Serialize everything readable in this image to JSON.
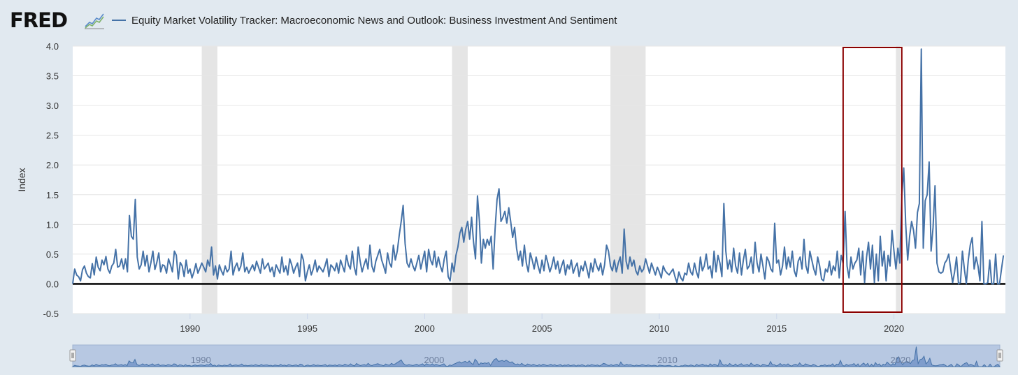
{
  "header": {
    "logo": "FRED",
    "logo_mark_icon": "fred-trend-graph-icon"
  },
  "colors": {
    "series": "#4572a7",
    "recession_band": "#e5e5e5",
    "zero_line": "#000000",
    "highlight_box": "#8b0000",
    "navigator_fill": "#b7c8e2",
    "navigator_line": "#4572a7",
    "background": "#e1e9f0"
  },
  "chart_data": {
    "type": "line",
    "series": [
      {
        "name": "Equity Market Volatility Tracker: Macroeconomic News and Outlook: Business Investment And Sentiment",
        "x": [
          "1985-01",
          "1985-02",
          "1985-03",
          "1985-04",
          "1985-05",
          "1985-06",
          "1985-07",
          "1985-08",
          "1985-09",
          "1985-10",
          "1985-11",
          "1985-12",
          "1986-01",
          "1986-02",
          "1986-03",
          "1986-04",
          "1986-05",
          "1986-06",
          "1986-07",
          "1986-08",
          "1986-09",
          "1986-10",
          "1986-11",
          "1986-12",
          "1987-01",
          "1987-02",
          "1987-03",
          "1987-04",
          "1987-05",
          "1987-06",
          "1987-07",
          "1987-08",
          "1987-09",
          "1987-10",
          "1987-11",
          "1987-12",
          "1988-01",
          "1988-02",
          "1988-03",
          "1988-04",
          "1988-05",
          "1988-06",
          "1988-07",
          "1988-08",
          "1988-09",
          "1988-10",
          "1988-11",
          "1988-12",
          "1989-01",
          "1989-02",
          "1989-03",
          "1989-04",
          "1989-05",
          "1989-06",
          "1989-07",
          "1989-08",
          "1989-09",
          "1989-10",
          "1989-11",
          "1989-12",
          "1990-01",
          "1990-02",
          "1990-03",
          "1990-04",
          "1990-05",
          "1990-06",
          "1990-07",
          "1990-08",
          "1990-09",
          "1990-10",
          "1990-11",
          "1990-12",
          "1991-01",
          "1991-02",
          "1991-03",
          "1991-04",
          "1991-05",
          "1991-06",
          "1991-07",
          "1991-08",
          "1991-09",
          "1991-10",
          "1991-11",
          "1991-12",
          "1992-01",
          "1992-02",
          "1992-03",
          "1992-04",
          "1992-05",
          "1992-06",
          "1992-07",
          "1992-08",
          "1992-09",
          "1992-10",
          "1992-11",
          "1992-12",
          "1993-01",
          "1993-02",
          "1993-03",
          "1993-04",
          "1993-05",
          "1993-06",
          "1993-07",
          "1993-08",
          "1993-09",
          "1993-10",
          "1993-11",
          "1993-12",
          "1994-01",
          "1994-02",
          "1994-03",
          "1994-04",
          "1994-05",
          "1994-06",
          "1994-07",
          "1994-08",
          "1994-09",
          "1994-10",
          "1994-11",
          "1994-12",
          "1995-01",
          "1995-02",
          "1995-03",
          "1995-04",
          "1995-05",
          "1995-06",
          "1995-07",
          "1995-08",
          "1995-09",
          "1995-10",
          "1995-11",
          "1995-12",
          "1996-01",
          "1996-02",
          "1996-03",
          "1996-04",
          "1996-05",
          "1996-06",
          "1996-07",
          "1996-08",
          "1996-09",
          "1996-10",
          "1996-11",
          "1996-12",
          "1997-01",
          "1997-02",
          "1997-03",
          "1997-04",
          "1997-05",
          "1997-06",
          "1997-07",
          "1997-08",
          "1997-09",
          "1997-10",
          "1997-11",
          "1997-12",
          "1998-01",
          "1998-02",
          "1998-03",
          "1998-04",
          "1998-05",
          "1998-06",
          "1998-07",
          "1998-08",
          "1998-09",
          "1998-10",
          "1998-11",
          "1998-12",
          "1999-01",
          "1999-02",
          "1999-03",
          "1999-04",
          "1999-05",
          "1999-06",
          "1999-07",
          "1999-08",
          "1999-09",
          "1999-10",
          "1999-11",
          "1999-12",
          "2000-01",
          "2000-02",
          "2000-03",
          "2000-04",
          "2000-05",
          "2000-06",
          "2000-07",
          "2000-08",
          "2000-09",
          "2000-10",
          "2000-11",
          "2000-12",
          "2001-01",
          "2001-02",
          "2001-03",
          "2001-04",
          "2001-05",
          "2001-06",
          "2001-07",
          "2001-08",
          "2001-09",
          "2001-10",
          "2001-11",
          "2001-12",
          "2002-01",
          "2002-02",
          "2002-03",
          "2002-04",
          "2002-05",
          "2002-06",
          "2002-07",
          "2002-08",
          "2002-09",
          "2002-10",
          "2002-11",
          "2002-12",
          "2003-01",
          "2003-02",
          "2003-03",
          "2003-04",
          "2003-05",
          "2003-06",
          "2003-07",
          "2003-08",
          "2003-09",
          "2003-10",
          "2003-11",
          "2003-12",
          "2004-01",
          "2004-02",
          "2004-03",
          "2004-04",
          "2004-05",
          "2004-06",
          "2004-07",
          "2004-08",
          "2004-09",
          "2004-10",
          "2004-11",
          "2004-12",
          "2005-01",
          "2005-02",
          "2005-03",
          "2005-04",
          "2005-05",
          "2005-06",
          "2005-07",
          "2005-08",
          "2005-09",
          "2005-10",
          "2005-11",
          "2005-12",
          "2006-01",
          "2006-02",
          "2006-03",
          "2006-04",
          "2006-05",
          "2006-06",
          "2006-07",
          "2006-08",
          "2006-09",
          "2006-10",
          "2006-11",
          "2006-12",
          "2007-01",
          "2007-02",
          "2007-03",
          "2007-04",
          "2007-05",
          "2007-06",
          "2007-07",
          "2007-08",
          "2007-09",
          "2007-10",
          "2007-11",
          "2007-12",
          "2008-01",
          "2008-02",
          "2008-03",
          "2008-04",
          "2008-05",
          "2008-06",
          "2008-07",
          "2008-08",
          "2008-09",
          "2008-10",
          "2008-11",
          "2008-12",
          "2009-01",
          "2009-02",
          "2009-03",
          "2009-04",
          "2009-05",
          "2009-06",
          "2009-07",
          "2009-08",
          "2009-09",
          "2009-10",
          "2009-11",
          "2009-12",
          "2010-01",
          "2010-02",
          "2010-03",
          "2010-04",
          "2010-05",
          "2010-06",
          "2010-07",
          "2010-08",
          "2010-09",
          "2010-10",
          "2010-11",
          "2010-12",
          "2011-01",
          "2011-02",
          "2011-03",
          "2011-04",
          "2011-05",
          "2011-06",
          "2011-07",
          "2011-08",
          "2011-09",
          "2011-10",
          "2011-11",
          "2011-12",
          "2012-01",
          "2012-02",
          "2012-03",
          "2012-04",
          "2012-05",
          "2012-06",
          "2012-07",
          "2012-08",
          "2012-09",
          "2012-10",
          "2012-11",
          "2012-12",
          "2013-01",
          "2013-02",
          "2013-03",
          "2013-04",
          "2013-05",
          "2013-06",
          "2013-07",
          "2013-08",
          "2013-09",
          "2013-10",
          "2013-11",
          "2013-12",
          "2014-01",
          "2014-02",
          "2014-03",
          "2014-04",
          "2014-05",
          "2014-06",
          "2014-07",
          "2014-08",
          "2014-09",
          "2014-10",
          "2014-11",
          "2014-12",
          "2015-01",
          "2015-02",
          "2015-03",
          "2015-04",
          "2015-05",
          "2015-06",
          "2015-07",
          "2015-08",
          "2015-09",
          "2015-10",
          "2015-11",
          "2015-12",
          "2016-01",
          "2016-02",
          "2016-03",
          "2016-04",
          "2016-05",
          "2016-06",
          "2016-07",
          "2016-08",
          "2016-09",
          "2016-10",
          "2016-11",
          "2016-12",
          "2017-01",
          "2017-02",
          "2017-03",
          "2017-04",
          "2017-05",
          "2017-06",
          "2017-07",
          "2017-08",
          "2017-09",
          "2017-10",
          "2017-11",
          "2017-12",
          "2018-01",
          "2018-02",
          "2018-03",
          "2018-04",
          "2018-05",
          "2018-06",
          "2018-07",
          "2018-08",
          "2018-09",
          "2018-10",
          "2018-11",
          "2018-12",
          "2019-01",
          "2019-02",
          "2019-03",
          "2019-04",
          "2019-05",
          "2019-06",
          "2019-07",
          "2019-08",
          "2019-09",
          "2019-10",
          "2019-11",
          "2019-12",
          "2020-01",
          "2020-02",
          "2020-03",
          "2020-04",
          "2020-05",
          "2020-06",
          "2020-07",
          "2020-08",
          "2020-09",
          "2020-10",
          "2020-11",
          "2020-12",
          "2021-01",
          "2021-02",
          "2021-03",
          "2021-04",
          "2021-05",
          "2021-06",
          "2021-07",
          "2021-08",
          "2021-09",
          "2021-10",
          "2021-11",
          "2021-12",
          "2022-01",
          "2022-02",
          "2022-03",
          "2022-04",
          "2022-05",
          "2022-06",
          "2022-07",
          "2022-08",
          "2022-09",
          "2022-10",
          "2022-11",
          "2022-12",
          "2023-01",
          "2023-02",
          "2023-03",
          "2023-04",
          "2023-05",
          "2023-06",
          "2023-07",
          "2023-08",
          "2023-09",
          "2023-10",
          "2023-11",
          "2023-12",
          "2024-01",
          "2024-02",
          "2024-03",
          "2024-04",
          "2024-05",
          "2024-06",
          "2024-07",
          "2024-08",
          "2024-09"
        ],
        "y": [
          0.0,
          0.25,
          0.15,
          0.12,
          0.05,
          0.24,
          0.3,
          0.18,
          0.12,
          0.1,
          0.34,
          0.15,
          0.45,
          0.28,
          0.22,
          0.4,
          0.32,
          0.46,
          0.25,
          0.18,
          0.3,
          0.35,
          0.58,
          0.28,
          0.3,
          0.42,
          0.25,
          0.42,
          0.2,
          1.15,
          0.8,
          0.75,
          1.42,
          0.45,
          0.25,
          0.32,
          0.55,
          0.3,
          0.48,
          0.2,
          0.36,
          0.55,
          0.24,
          0.36,
          0.52,
          0.2,
          0.32,
          0.3,
          0.18,
          0.42,
          0.32,
          0.2,
          0.55,
          0.48,
          0.08,
          0.36,
          0.3,
          0.12,
          0.4,
          0.18,
          0.25,
          0.1,
          0.2,
          0.34,
          0.18,
          0.26,
          0.35,
          0.28,
          0.2,
          0.4,
          0.3,
          0.62,
          0.15,
          0.3,
          0.08,
          0.32,
          0.22,
          0.15,
          0.3,
          0.2,
          0.25,
          0.55,
          0.15,
          0.28,
          0.35,
          0.22,
          0.3,
          0.52,
          0.2,
          0.28,
          0.18,
          0.25,
          0.32,
          0.22,
          0.38,
          0.28,
          0.18,
          0.42,
          0.25,
          0.3,
          0.35,
          0.2,
          0.28,
          0.12,
          0.32,
          0.25,
          0.18,
          0.45,
          0.2,
          0.3,
          0.15,
          0.42,
          0.32,
          0.18,
          0.28,
          0.35,
          0.12,
          0.5,
          0.4,
          0.05,
          0.2,
          0.32,
          0.15,
          0.25,
          0.4,
          0.2,
          0.3,
          0.25,
          0.2,
          0.3,
          0.42,
          0.12,
          0.32,
          0.28,
          0.22,
          0.35,
          0.18,
          0.4,
          0.3,
          0.2,
          0.48,
          0.32,
          0.25,
          0.55,
          0.28,
          0.15,
          0.62,
          0.38,
          0.2,
          0.32,
          0.42,
          0.25,
          0.65,
          0.3,
          0.2,
          0.38,
          0.48,
          0.58,
          0.4,
          0.3,
          0.18,
          0.52,
          0.35,
          0.28,
          0.65,
          0.4,
          0.55,
          0.82,
          1.05,
          1.32,
          0.68,
          0.35,
          0.28,
          0.42,
          0.3,
          0.22,
          0.35,
          0.48,
          0.25,
          0.4,
          0.55,
          0.2,
          0.58,
          0.4,
          0.32,
          0.55,
          0.28,
          0.45,
          0.3,
          0.2,
          0.42,
          0.55,
          0.12,
          0.05,
          0.35,
          0.2,
          0.48,
          0.62,
          0.85,
          0.95,
          0.7,
          0.92,
          1.05,
          0.75,
          1.12,
          0.7,
          0.42,
          1.48,
          1.05,
          0.35,
          0.75,
          0.6,
          0.75,
          0.65,
          0.8,
          0.25,
          0.92,
          1.42,
          1.6,
          1.05,
          1.12,
          1.22,
          1.02,
          1.28,
          1.05,
          0.78,
          0.95,
          0.6,
          0.4,
          0.55,
          0.3,
          0.65,
          0.35,
          0.2,
          0.52,
          0.4,
          0.25,
          0.45,
          0.3,
          0.18,
          0.4,
          0.22,
          0.48,
          0.35,
          0.2,
          0.3,
          0.45,
          0.25,
          0.38,
          0.18,
          0.3,
          0.4,
          0.15,
          0.32,
          0.25,
          0.4,
          0.18,
          0.28,
          0.35,
          0.12,
          0.3,
          0.22,
          0.38,
          0.25,
          0.1,
          0.35,
          0.2,
          0.42,
          0.3,
          0.22,
          0.35,
          0.15,
          0.32,
          0.65,
          0.55,
          0.3,
          0.22,
          0.4,
          0.2,
          0.35,
          0.45,
          0.18,
          0.92,
          0.38,
          0.25,
          0.45,
          0.3,
          0.4,
          0.22,
          0.15,
          0.3,
          0.2,
          0.25,
          0.42,
          0.3,
          0.18,
          0.35,
          0.25,
          0.15,
          0.28,
          0.2,
          0.1,
          0.3,
          0.22,
          0.18,
          0.15,
          0.2,
          0.25,
          0.12,
          0.02,
          0.2,
          0.1,
          0.05,
          0.18,
          0.15,
          0.35,
          0.2,
          0.15,
          0.35,
          0.2,
          0.1,
          0.45,
          0.22,
          0.3,
          0.5,
          0.25,
          0.3,
          0.1,
          0.55,
          0.2,
          0.48,
          0.35,
          0.12,
          1.35,
          0.55,
          0.25,
          0.4,
          0.2,
          0.6,
          0.3,
          0.18,
          0.52,
          0.15,
          0.4,
          0.58,
          0.25,
          0.3,
          0.45,
          0.18,
          0.7,
          0.35,
          0.2,
          0.5,
          0.3,
          0.08,
          0.45,
          0.38,
          0.25,
          0.2,
          1.02,
          0.35,
          0.4,
          0.15,
          0.3,
          0.62,
          0.25,
          0.45,
          0.28,
          0.55,
          0.22,
          0.12,
          0.38,
          0.45,
          0.25,
          0.75,
          0.3,
          0.18,
          0.55,
          0.4,
          0.25,
          0.15,
          0.45,
          0.3,
          0.08,
          0.05,
          0.25,
          0.2,
          0.38,
          0.15,
          0.3,
          0.22,
          0.55,
          0.1,
          0.48,
          0.35,
          1.22,
          0.3,
          0.1,
          0.45,
          0.25,
          0.35,
          0.4,
          0.6,
          0.15,
          0.55,
          0.02,
          0.45,
          0.7,
          0.25,
          0.65,
          0.02,
          0.5,
          0.05,
          0.8,
          0.3,
          0.55,
          0.05,
          0.48,
          0.3,
          0.9,
          0.55,
          0.25,
          0.6,
          0.35,
          1.5,
          1.95,
          1.0,
          0.4,
          0.8,
          1.05,
          0.9,
          0.6,
          1.2,
          1.35,
          3.95,
          0.6,
          1.4,
          1.5,
          2.05,
          0.55,
          0.95,
          1.65,
          0.35,
          0.2,
          0.18,
          0.2,
          0.35,
          0.4,
          0.5,
          0.25,
          0.02,
          0.2,
          0.45,
          0.0,
          0.02,
          0.55,
          0.25,
          0.0,
          0.4,
          0.65,
          0.78,
          0.25,
          0.45,
          0.3,
          0.05,
          1.05,
          0.0,
          0.0,
          0.02,
          0.4,
          0.0,
          0.0,
          0.5,
          0.0,
          0.0,
          0.25,
          0.48
        ]
      }
    ],
    "recessions": [
      [
        "1990-07",
        "1991-03"
      ],
      [
        "2001-03",
        "2001-11"
      ],
      [
        "2007-12",
        "2009-06"
      ],
      [
        "2020-02",
        "2020-04"
      ]
    ],
    "highlight": {
      "x_start": "2017-11",
      "x_end": "2020-05",
      "y_start": -0.5,
      "y_end": 4.0
    },
    "x_start": "1985-01",
    "x_end": "2024-10",
    "ylabel": "Index",
    "ylim": [
      -0.5,
      4.0
    ],
    "yticks": [
      "4.0",
      "3.5",
      "3.0",
      "2.5",
      "2.0",
      "1.5",
      "1.0",
      "0.5",
      "0.0",
      "-0.5"
    ],
    "xticks": [
      "1990",
      "1995",
      "2000",
      "2005",
      "2010",
      "2015",
      "2020"
    ],
    "navigator_labels": [
      "1990",
      "2000",
      "2010",
      "2020"
    ],
    "grid": true,
    "legend": "top-left"
  }
}
